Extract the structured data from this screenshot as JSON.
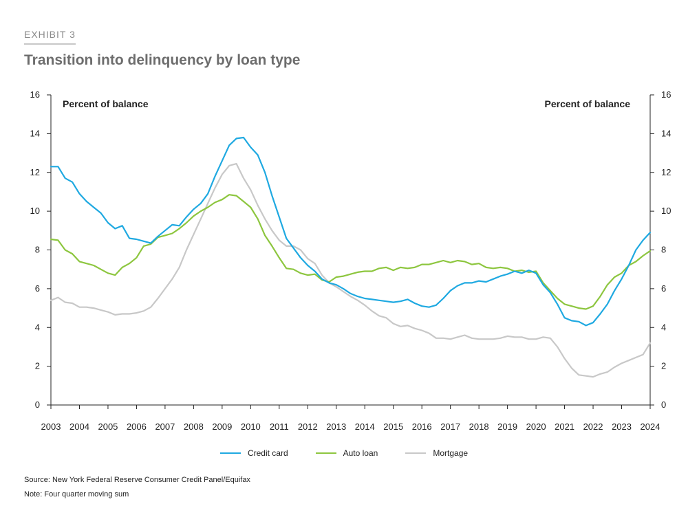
{
  "header": {
    "exhibit": "EXHIBIT 3",
    "title": "Transition into delinquency by loan type"
  },
  "footer": {
    "source": "Source: New York Federal Reserve Consumer Credit Panel/Equifax",
    "note": "Note: Four quarter moving sum"
  },
  "colors": {
    "credit_card": "#1fa9e1",
    "auto_loan": "#8dc63f",
    "mortgage": "#c8c8c8"
  },
  "chart_data": {
    "type": "line",
    "title": "Transition into delinquency by loan type",
    "ylabel_left": "Percent of balance",
    "ylabel_right": "Percent of balance",
    "xlim": [
      2003,
      2024
    ],
    "ylim": [
      0,
      16
    ],
    "y_ticks": [
      "0",
      "2",
      "4",
      "6",
      "8",
      "10",
      "12",
      "14",
      "16"
    ],
    "x_ticks": [
      "2003",
      "2004",
      "2005",
      "2006",
      "2007",
      "2008",
      "2009",
      "2010",
      "2011",
      "2012",
      "2013",
      "2014",
      "2015",
      "2016",
      "2017",
      "2018",
      "2019",
      "2020",
      "2021",
      "2022",
      "2023",
      "2024"
    ],
    "grid": false,
    "legend": "bottom-center",
    "series": [
      {
        "name": "Credit card",
        "color": "#1fa9e1",
        "points": [
          [
            2003,
            12.3
          ],
          [
            2003.25,
            12.3
          ],
          [
            2003.5,
            11.7
          ],
          [
            2003.75,
            11.5
          ],
          [
            2004,
            10.9
          ],
          [
            2004.25,
            10.5
          ],
          [
            2004.5,
            10.2
          ],
          [
            2004.75,
            9.9
          ],
          [
            2005,
            9.4
          ],
          [
            2005.25,
            9.1
          ],
          [
            2005.5,
            9.25
          ],
          [
            2005.75,
            8.6
          ],
          [
            2006,
            8.55
          ],
          [
            2006.25,
            8.45
          ],
          [
            2006.5,
            8.35
          ],
          [
            2006.75,
            8.7
          ],
          [
            2007,
            9.0
          ],
          [
            2007.25,
            9.3
          ],
          [
            2007.5,
            9.25
          ],
          [
            2007.75,
            9.7
          ],
          [
            2008,
            10.1
          ],
          [
            2008.25,
            10.4
          ],
          [
            2008.5,
            10.9
          ],
          [
            2008.75,
            11.8
          ],
          [
            2009,
            12.6
          ],
          [
            2009.25,
            13.4
          ],
          [
            2009.5,
            13.75
          ],
          [
            2009.75,
            13.8
          ],
          [
            2010,
            13.3
          ],
          [
            2010.25,
            12.9
          ],
          [
            2010.5,
            12.0
          ],
          [
            2010.75,
            10.8
          ],
          [
            2011,
            9.7
          ],
          [
            2011.25,
            8.6
          ],
          [
            2011.5,
            8.1
          ],
          [
            2011.75,
            7.6
          ],
          [
            2012,
            7.2
          ],
          [
            2012.25,
            6.9
          ],
          [
            2012.5,
            6.5
          ],
          [
            2012.75,
            6.3
          ],
          [
            2013,
            6.2
          ],
          [
            2013.25,
            6.0
          ],
          [
            2013.5,
            5.75
          ],
          [
            2013.75,
            5.6
          ],
          [
            2014,
            5.5
          ],
          [
            2014.25,
            5.45
          ],
          [
            2014.5,
            5.4
          ],
          [
            2014.75,
            5.35
          ],
          [
            2015,
            5.3
          ],
          [
            2015.25,
            5.35
          ],
          [
            2015.5,
            5.45
          ],
          [
            2015.75,
            5.25
          ],
          [
            2016,
            5.1
          ],
          [
            2016.25,
            5.05
          ],
          [
            2016.5,
            5.15
          ],
          [
            2016.75,
            5.5
          ],
          [
            2017,
            5.9
          ],
          [
            2017.25,
            6.15
          ],
          [
            2017.5,
            6.3
          ],
          [
            2017.75,
            6.3
          ],
          [
            2018,
            6.4
          ],
          [
            2018.25,
            6.35
          ],
          [
            2018.5,
            6.5
          ],
          [
            2018.75,
            6.65
          ],
          [
            2019,
            6.75
          ],
          [
            2019.25,
            6.9
          ],
          [
            2019.5,
            6.8
          ],
          [
            2019.75,
            6.95
          ],
          [
            2020,
            6.8
          ],
          [
            2020.25,
            6.2
          ],
          [
            2020.5,
            5.8
          ],
          [
            2020.75,
            5.2
          ],
          [
            2021,
            4.5
          ],
          [
            2021.25,
            4.35
          ],
          [
            2021.5,
            4.3
          ],
          [
            2021.75,
            4.1
          ],
          [
            2022,
            4.25
          ],
          [
            2022.25,
            4.7
          ],
          [
            2022.5,
            5.2
          ],
          [
            2022.75,
            5.9
          ],
          [
            2023,
            6.5
          ],
          [
            2023.25,
            7.2
          ],
          [
            2023.5,
            8.0
          ],
          [
            2023.75,
            8.5
          ],
          [
            2024,
            8.9
          ]
        ]
      },
      {
        "name": "Auto loan",
        "color": "#8dc63f",
        "points": [
          [
            2003,
            8.55
          ],
          [
            2003.25,
            8.5
          ],
          [
            2003.5,
            8.0
          ],
          [
            2003.75,
            7.8
          ],
          [
            2004,
            7.4
          ],
          [
            2004.25,
            7.3
          ],
          [
            2004.5,
            7.2
          ],
          [
            2004.75,
            7.0
          ],
          [
            2005,
            6.8
          ],
          [
            2005.25,
            6.7
          ],
          [
            2005.5,
            7.1
          ],
          [
            2005.75,
            7.3
          ],
          [
            2006,
            7.6
          ],
          [
            2006.25,
            8.2
          ],
          [
            2006.5,
            8.3
          ],
          [
            2006.75,
            8.65
          ],
          [
            2007,
            8.75
          ],
          [
            2007.25,
            8.85
          ],
          [
            2007.5,
            9.1
          ],
          [
            2007.75,
            9.4
          ],
          [
            2008,
            9.75
          ],
          [
            2008.25,
            10.0
          ],
          [
            2008.5,
            10.2
          ],
          [
            2008.75,
            10.45
          ],
          [
            2009,
            10.6
          ],
          [
            2009.25,
            10.85
          ],
          [
            2009.5,
            10.8
          ],
          [
            2009.75,
            10.5
          ],
          [
            2010,
            10.2
          ],
          [
            2010.25,
            9.6
          ],
          [
            2010.5,
            8.75
          ],
          [
            2010.75,
            8.2
          ],
          [
            2011,
            7.6
          ],
          [
            2011.25,
            7.05
          ],
          [
            2011.5,
            7.0
          ],
          [
            2011.75,
            6.8
          ],
          [
            2012,
            6.7
          ],
          [
            2012.25,
            6.75
          ],
          [
            2012.5,
            6.45
          ],
          [
            2012.75,
            6.35
          ],
          [
            2013,
            6.6
          ],
          [
            2013.25,
            6.65
          ],
          [
            2013.5,
            6.75
          ],
          [
            2013.75,
            6.85
          ],
          [
            2014,
            6.9
          ],
          [
            2014.25,
            6.9
          ],
          [
            2014.5,
            7.05
          ],
          [
            2014.75,
            7.1
          ],
          [
            2015,
            6.95
          ],
          [
            2015.25,
            7.1
          ],
          [
            2015.5,
            7.05
          ],
          [
            2015.75,
            7.1
          ],
          [
            2016,
            7.25
          ],
          [
            2016.25,
            7.25
          ],
          [
            2016.5,
            7.35
          ],
          [
            2016.75,
            7.45
          ],
          [
            2017,
            7.35
          ],
          [
            2017.25,
            7.45
          ],
          [
            2017.5,
            7.4
          ],
          [
            2017.75,
            7.25
          ],
          [
            2018,
            7.3
          ],
          [
            2018.25,
            7.1
          ],
          [
            2018.5,
            7.05
          ],
          [
            2018.75,
            7.1
          ],
          [
            2019,
            7.05
          ],
          [
            2019.25,
            6.9
          ],
          [
            2019.5,
            6.95
          ],
          [
            2019.75,
            6.85
          ],
          [
            2020,
            6.9
          ],
          [
            2020.25,
            6.3
          ],
          [
            2020.5,
            5.9
          ],
          [
            2020.75,
            5.5
          ],
          [
            2021,
            5.2
          ],
          [
            2021.25,
            5.1
          ],
          [
            2021.5,
            5.0
          ],
          [
            2021.75,
            4.95
          ],
          [
            2022,
            5.1
          ],
          [
            2022.25,
            5.6
          ],
          [
            2022.5,
            6.2
          ],
          [
            2022.75,
            6.6
          ],
          [
            2023,
            6.8
          ],
          [
            2023.25,
            7.2
          ],
          [
            2023.5,
            7.4
          ],
          [
            2023.75,
            7.7
          ],
          [
            2024,
            7.95
          ]
        ]
      },
      {
        "name": "Mortgage",
        "color": "#c8c8c8",
        "points": [
          [
            2003,
            5.4
          ],
          [
            2003.25,
            5.55
          ],
          [
            2003.5,
            5.3
          ],
          [
            2003.75,
            5.25
          ],
          [
            2004,
            5.05
          ],
          [
            2004.25,
            5.05
          ],
          [
            2004.5,
            5.0
          ],
          [
            2004.75,
            4.9
          ],
          [
            2005,
            4.8
          ],
          [
            2005.25,
            4.65
          ],
          [
            2005.5,
            4.7
          ],
          [
            2005.75,
            4.7
          ],
          [
            2006,
            4.75
          ],
          [
            2006.25,
            4.85
          ],
          [
            2006.5,
            5.05
          ],
          [
            2006.75,
            5.5
          ],
          [
            2007,
            6.0
          ],
          [
            2007.25,
            6.5
          ],
          [
            2007.5,
            7.1
          ],
          [
            2007.75,
            8.0
          ],
          [
            2008,
            8.8
          ],
          [
            2008.25,
            9.6
          ],
          [
            2008.5,
            10.4
          ],
          [
            2008.75,
            11.2
          ],
          [
            2009,
            11.9
          ],
          [
            2009.25,
            12.35
          ],
          [
            2009.5,
            12.45
          ],
          [
            2009.75,
            11.7
          ],
          [
            2010,
            11.1
          ],
          [
            2010.25,
            10.3
          ],
          [
            2010.5,
            9.6
          ],
          [
            2010.75,
            9.0
          ],
          [
            2011,
            8.5
          ],
          [
            2011.25,
            8.2
          ],
          [
            2011.5,
            8.2
          ],
          [
            2011.75,
            8.0
          ],
          [
            2012,
            7.55
          ],
          [
            2012.25,
            7.3
          ],
          [
            2012.5,
            6.7
          ],
          [
            2012.75,
            6.3
          ],
          [
            2013,
            6.1
          ],
          [
            2013.25,
            5.85
          ],
          [
            2013.5,
            5.6
          ],
          [
            2013.75,
            5.4
          ],
          [
            2014,
            5.15
          ],
          [
            2014.25,
            4.85
          ],
          [
            2014.5,
            4.6
          ],
          [
            2014.75,
            4.5
          ],
          [
            2015,
            4.2
          ],
          [
            2015.25,
            4.05
          ],
          [
            2015.5,
            4.1
          ],
          [
            2015.75,
            3.95
          ],
          [
            2016,
            3.85
          ],
          [
            2016.25,
            3.7
          ],
          [
            2016.5,
            3.45
          ],
          [
            2016.75,
            3.45
          ],
          [
            2017,
            3.4
          ],
          [
            2017.25,
            3.5
          ],
          [
            2017.5,
            3.6
          ],
          [
            2017.75,
            3.45
          ],
          [
            2018,
            3.4
          ],
          [
            2018.25,
            3.4
          ],
          [
            2018.5,
            3.4
          ],
          [
            2018.75,
            3.45
          ],
          [
            2019,
            3.55
          ],
          [
            2019.25,
            3.5
          ],
          [
            2019.5,
            3.5
          ],
          [
            2019.75,
            3.4
          ],
          [
            2020,
            3.4
          ],
          [
            2020.25,
            3.5
          ],
          [
            2020.5,
            3.45
          ],
          [
            2020.75,
            3.0
          ],
          [
            2021,
            2.4
          ],
          [
            2021.25,
            1.9
          ],
          [
            2021.5,
            1.55
          ],
          [
            2021.75,
            1.5
          ],
          [
            2022,
            1.45
          ],
          [
            2022.25,
            1.6
          ],
          [
            2022.5,
            1.7
          ],
          [
            2022.75,
            1.95
          ],
          [
            2023,
            2.15
          ],
          [
            2023.25,
            2.3
          ],
          [
            2023.5,
            2.45
          ],
          [
            2023.75,
            2.6
          ],
          [
            2024,
            3.2
          ]
        ]
      }
    ]
  }
}
